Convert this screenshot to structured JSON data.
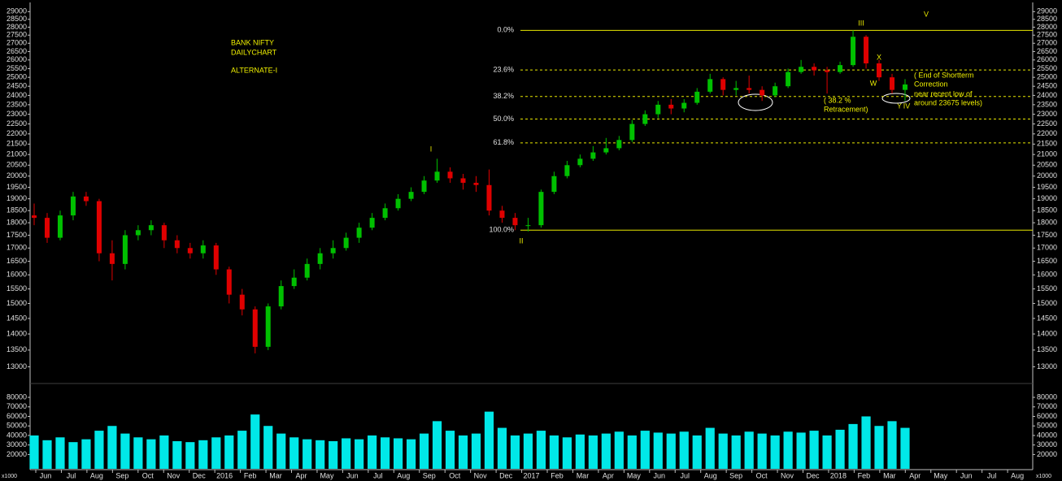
{
  "chart_data": {
    "type": "candlestick",
    "title_lines": [
      "BANK NIFTY",
      "DAILYCHART",
      "ALTERNATE-I"
    ],
    "log_scale": true,
    "up_color": "#00c000",
    "down_color": "#e00000",
    "ylim": [
      12750,
      29500
    ],
    "yticks": [
      13000,
      13500,
      14000,
      14500,
      15000,
      15500,
      16000,
      16500,
      17000,
      17500,
      18000,
      18500,
      19000,
      19500,
      20000,
      20500,
      21000,
      21500,
      22000,
      22500,
      23000,
      23500,
      24000,
      24500,
      25000,
      25500,
      26000,
      26500,
      27000,
      27500,
      28000,
      28500,
      29000
    ],
    "x_labels": [
      "Jun",
      "Jul",
      "Aug",
      "Sep",
      "Oct",
      "Nov",
      "Dec",
      "2016",
      "Feb",
      "Mar",
      "Apr",
      "May",
      "Jun",
      "Jul",
      "Aug",
      "Sep",
      "Oct",
      "Nov",
      "Dec",
      "2017",
      "Feb",
      "Mar",
      "Apr",
      "May",
      "Jun",
      "Jul",
      "Aug",
      "Sep",
      "Oct",
      "Nov",
      "Dec",
      "2018",
      "Feb",
      "Mar",
      "Apr",
      "May",
      "Jun",
      "Jul",
      "Aug"
    ],
    "open": [
      18300,
      18200,
      17400,
      18300,
      19100,
      18900,
      16800,
      16400,
      17500,
      17700,
      17900,
      17300,
      17000,
      16800,
      17100,
      16200,
      15300,
      14800,
      13600,
      14900,
      15600,
      15900,
      16400,
      16800,
      17000,
      17400,
      17800,
      18200,
      18600,
      19000,
      19300,
      19800,
      20200,
      19900,
      19700,
      19600,
      18500,
      18200,
      17900,
      17900,
      19300,
      20000,
      20500,
      20800,
      21100,
      21300,
      21700,
      22500,
      23000,
      23500,
      23300,
      23600,
      24200,
      24900,
      24300,
      24400,
      24300,
      24000,
      24500,
      25300,
      25600,
      25400,
      25300,
      25700,
      27400,
      25800,
      25000,
      24300
    ],
    "high": [
      18800,
      18400,
      18500,
      19300,
      19300,
      19000,
      17300,
      17700,
      17900,
      18100,
      18000,
      17500,
      17200,
      17300,
      17200,
      16300,
      15500,
      14900,
      15000,
      15800,
      16200,
      16600,
      17000,
      17300,
      17600,
      18000,
      18400,
      18800,
      19200,
      19500,
      20000,
      20800,
      20400,
      20100,
      20000,
      20300,
      18700,
      18400,
      18200,
      19400,
      20200,
      20700,
      21000,
      21400,
      21800,
      21900,
      22700,
      23200,
      23700,
      23800,
      23800,
      24400,
      25200,
      25000,
      24800,
      25100,
      24500,
      24700,
      25500,
      26000,
      25800,
      25600,
      25900,
      27800,
      27500,
      26000,
      25200,
      24900
    ],
    "low": [
      17900,
      17200,
      17300,
      18100,
      18700,
      16500,
      15800,
      16200,
      17300,
      17500,
      17000,
      16800,
      16600,
      16600,
      16000,
      15000,
      14600,
      13400,
      13500,
      14800,
      15500,
      15800,
      16200,
      16600,
      16900,
      17200,
      17700,
      18100,
      18500,
      18900,
      19200,
      19700,
      19700,
      19400,
      19300,
      18300,
      18000,
      17700,
      17650,
      17800,
      19200,
      19900,
      20400,
      20700,
      21000,
      21200,
      21600,
      22400,
      22800,
      23000,
      23100,
      23500,
      24100,
      24000,
      24000,
      24100,
      23700,
      23900,
      24400,
      25200,
      25100,
      24100,
      25200,
      25600,
      25500,
      24800,
      24100,
      23700
    ],
    "close": [
      18200,
      17400,
      18300,
      19100,
      18900,
      16800,
      16400,
      17500,
      17700,
      17900,
      17300,
      17000,
      16800,
      17100,
      16200,
      15300,
      14800,
      13600,
      14900,
      15600,
      15900,
      16400,
      16800,
      17000,
      17400,
      17800,
      18200,
      18600,
      19000,
      19300,
      19800,
      20200,
      19900,
      19700,
      19600,
      18500,
      18200,
      17900,
      17900,
      19300,
      20000,
      20500,
      20800,
      21100,
      21300,
      21700,
      22500,
      23000,
      23500,
      23300,
      23600,
      24200,
      24900,
      24300,
      24400,
      24300,
      24000,
      24500,
      25300,
      25600,
      25400,
      25300,
      25700,
      27400,
      25800,
      25000,
      24300,
      24600
    ],
    "fib_color": "#e8e800",
    "fib_levels": [
      {
        "value": 27800,
        "label": "0.0%",
        "line_style": "solid"
      },
      {
        "value": 25416,
        "label": "23.6%",
        "line_style": "dashed"
      },
      {
        "value": 23942,
        "label": "38.2%",
        "line_style": "dashed"
      },
      {
        "value": 22750,
        "label": "50.0%",
        "line_style": "dashed"
      },
      {
        "value": 21558,
        "label": "61.8%",
        "line_style": "dashed"
      },
      {
        "value": 17700,
        "label": "100.0%",
        "line_style": "solid"
      }
    ],
    "wave_labels": [
      "I",
      "II",
      "III",
      "V",
      "W",
      "X",
      "Y",
      "IV"
    ],
    "notes": [
      "( 38.2 %",
      "Retracement)",
      "( End of Shortterm",
      "Correction",
      "near recent low of",
      "around 23675 levels)"
    ],
    "volume": {
      "type": "bar",
      "color": "#00e8e8",
      "unit_label": "x1000",
      "ylim": [
        5000,
        86000
      ],
      "yticks": [
        20000,
        30000,
        40000,
        50000,
        60000,
        70000,
        80000
      ],
      "values": [
        40000,
        35000,
        38000,
        33000,
        36000,
        45000,
        50000,
        42000,
        38000,
        36000,
        40000,
        34000,
        33000,
        35000,
        38000,
        40000,
        45000,
        62000,
        50000,
        42000,
        38000,
        36000,
        35000,
        34000,
        37000,
        36000,
        40000,
        38000,
        37000,
        36000,
        42000,
        55000,
        45000,
        40000,
        42000,
        65000,
        48000,
        40000,
        42000,
        45000,
        40000,
        38000,
        41000,
        40000,
        42000,
        44000,
        40000,
        45000,
        43000,
        42000,
        44000,
        40000,
        48000,
        42000,
        40000,
        44000,
        42000,
        40000,
        44000,
        43000,
        45000,
        40000,
        46000,
        52000,
        60000,
        50000,
        55000,
        48000
      ]
    }
  }
}
